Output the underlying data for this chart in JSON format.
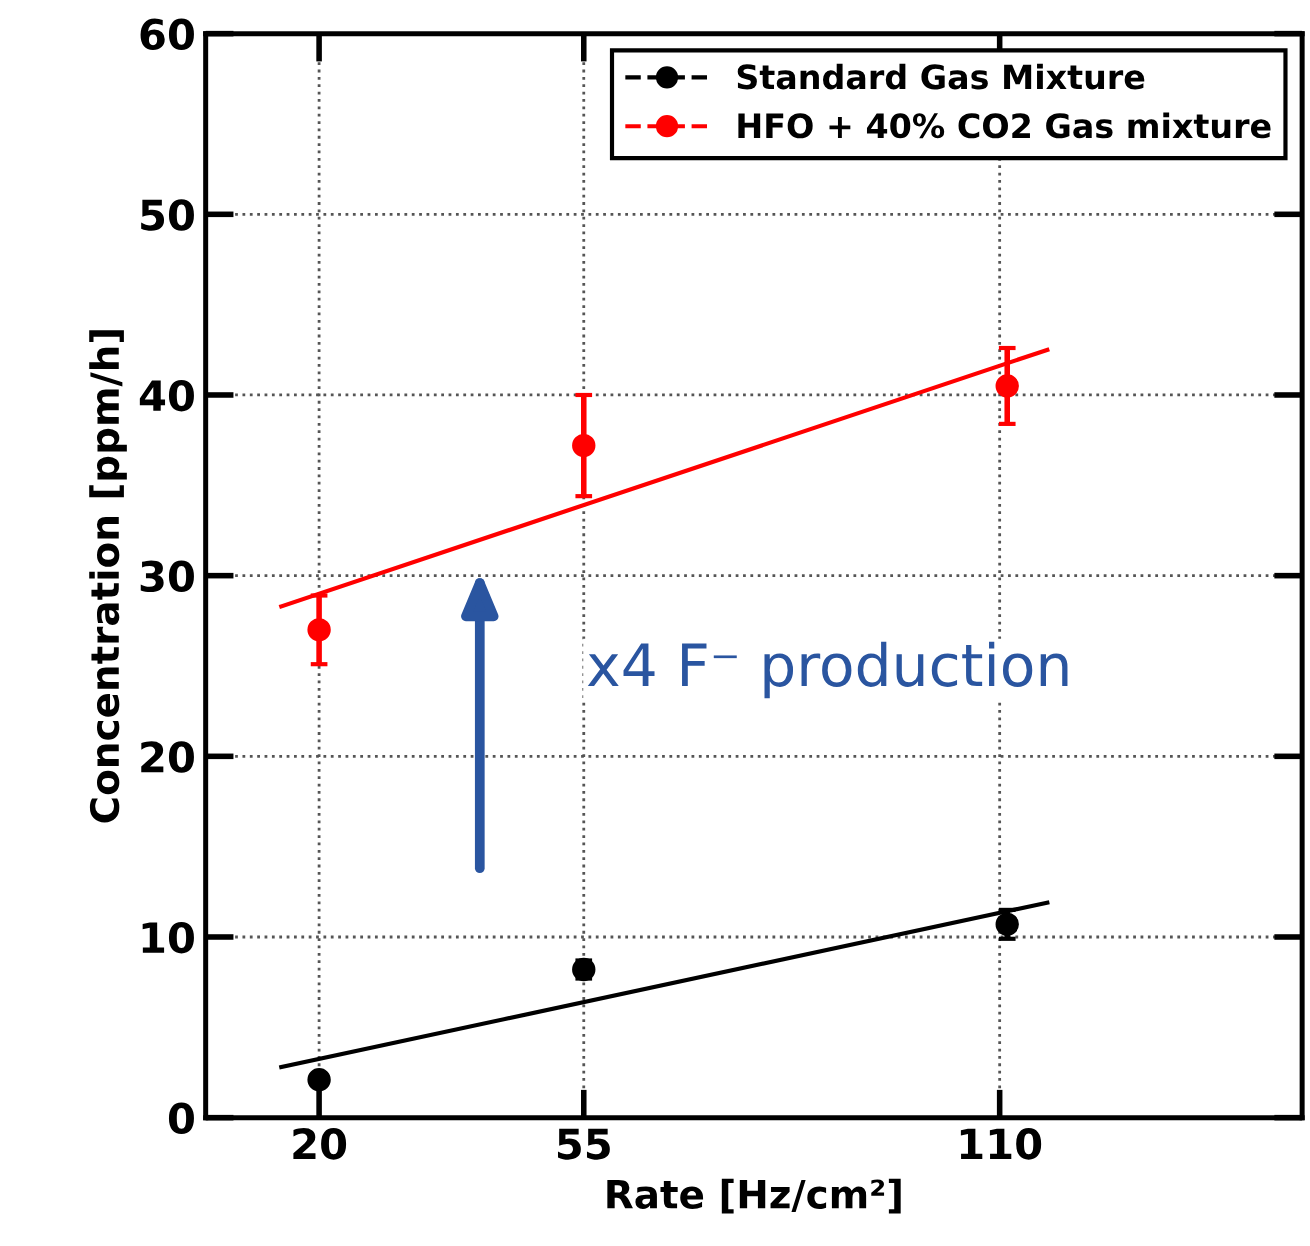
{
  "chart_data": {
    "type": "scatter",
    "xlabel": "Rate [Hz/cm²]",
    "ylabel": "Concentration [ppm/h]",
    "xlim": [
      5,
      150
    ],
    "xticks": [
      20,
      55,
      110
    ],
    "ylim": [
      0,
      60
    ],
    "yticks": [
      0,
      10,
      20,
      30,
      40,
      50,
      60
    ],
    "grid": true,
    "legend": "top right",
    "marker": "circle",
    "series": [
      {
        "name": "Standard Gas Mixture",
        "color": "#000000",
        "x": [
          20,
          55,
          111
        ],
        "values": [
          2.1,
          8.2,
          10.7
        ],
        "errors": [
          null,
          0.5,
          0.8
        ]
      },
      {
        "name": "HFO + 40% CO2 Gas mixture",
        "color": "#ff0000",
        "x": [
          20,
          55,
          111
        ],
        "values": [
          27.0,
          37.2,
          40.5
        ],
        "errors": [
          1.9,
          2.8,
          2.1
        ]
      },
      {
        "type": "line",
        "marker": "none",
        "color": "#000000",
        "x": [
          15,
          116.3
        ],
        "values": [
          2.8,
          11.9
        ]
      },
      {
        "type": "line",
        "marker": "none",
        "color": "#ff0000",
        "x": [
          15,
          116.3
        ],
        "values": [
          28.3,
          42.5
        ]
      }
    ],
    "annotations": [
      "x4 F⁻ production"
    ]
  }
}
